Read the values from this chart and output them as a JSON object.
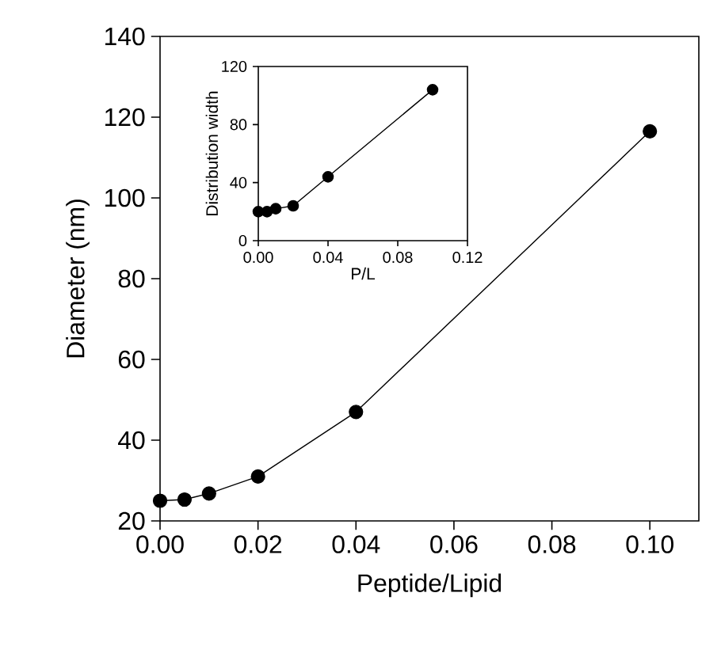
{
  "chart_data": [
    {
      "type": "line",
      "xlabel": "Peptide/Lipid",
      "ylabel": "Diameter (nm)",
      "x": [
        0,
        0.005,
        0.01,
        0.02,
        0.04,
        0.1
      ],
      "series": [
        {
          "color": "#000000",
          "values": [
            25,
            25.3,
            26.8,
            31,
            47,
            116.5
          ]
        }
      ],
      "xlim": [
        0,
        0.11
      ],
      "ylim": [
        20,
        140
      ],
      "xticks": [
        {
          "value": 0,
          "label": "0.00"
        },
        {
          "value": 0.02,
          "label": "0.02"
        },
        {
          "value": 0.04,
          "label": "0.04"
        },
        {
          "value": 0.06,
          "label": "0.06"
        },
        {
          "value": 0.08,
          "label": "0.08"
        },
        {
          "value": 0.1,
          "label": "0.10"
        }
      ],
      "yticks": [
        20,
        40,
        60,
        80,
        100,
        120,
        140
      ],
      "marker": "circle",
      "line_style": "solid"
    },
    {
      "type": "line",
      "xlabel": "P/L",
      "ylabel": "Distribution width",
      "x": [
        0,
        0.005,
        0.01,
        0.02,
        0.04,
        0.1
      ],
      "series": [
        {
          "color": "#000000",
          "values": [
            20,
            20,
            22,
            24,
            44,
            104
          ]
        }
      ],
      "xlim": [
        0,
        0.12
      ],
      "ylim": [
        0,
        120
      ],
      "xticks": [
        {
          "value": 0,
          "label": "0.00"
        },
        {
          "value": 0.04,
          "label": "0.04"
        },
        {
          "value": 0.08,
          "label": "0.08"
        },
        {
          "value": 0.12,
          "label": "0.12"
        }
      ],
      "yticks": [
        0,
        40,
        80,
        120
      ],
      "marker": "circle",
      "line_style": "solid"
    }
  ]
}
